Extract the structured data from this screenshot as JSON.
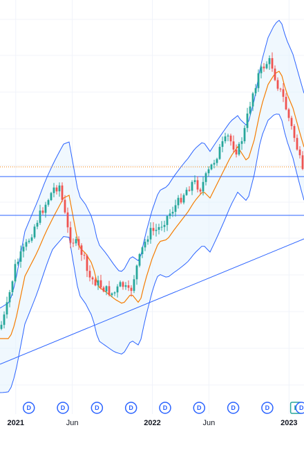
{
  "chart_data": {
    "type": "candlestick",
    "title": "",
    "xlabel": "",
    "ylabel": "",
    "x_tick_labels": [
      "2021",
      "Jun",
      "2022",
      "Jun",
      "2023"
    ],
    "x_tick_dates": [
      "2021-01-01",
      "2021-06-01",
      "2022-01-01",
      "2022-06-01",
      "2023-01-01"
    ],
    "x_range": [
      "2020-11-20",
      "2023-02-10"
    ],
    "y_axis_shown": false,
    "grid": true,
    "legend": "none",
    "series": [
      {
        "kind": "candles",
        "interval": "weekly"
      },
      {
        "kind": "bollinger-bands"
      },
      {
        "kind": "moving-average"
      }
    ],
    "horizontal_levels": [
      {
        "style": "solid",
        "level": "upper"
      },
      {
        "style": "dotted",
        "level": "last-price"
      },
      {
        "style": "solid",
        "level": "lower"
      }
    ],
    "trendline": {
      "style": "solid"
    },
    "event_markers": [
      {
        "date": "2021-02-05",
        "label": "D"
      },
      {
        "date": "2021-05-07",
        "label": "D"
      },
      {
        "date": "2021-08-06",
        "label": "D"
      },
      {
        "date": "2021-11-05",
        "label": "D"
      },
      {
        "date": "2022-02-04",
        "label": "D"
      },
      {
        "date": "2022-05-06",
        "label": "D"
      },
      {
        "date": "2022-08-05",
        "label": "D"
      },
      {
        "date": "2022-11-04",
        "label": "D"
      },
      {
        "date": "2023-01-20",
        "label": "E"
      },
      {
        "date": "2023-02-03",
        "label": "D"
      }
    ]
  },
  "colors": {
    "up": "#26a69a",
    "down": "#ef5350",
    "band_line": "#2962ff",
    "band_fill": "#e3f2fd",
    "moving_average": "#f57c00",
    "level_line": "#2962ff",
    "last_price_line": "#f57c00",
    "trendline": "#2962ff",
    "dividend_marker": "#2962ff",
    "earnings_marker": "#26a69a",
    "grid": "#f0f3fa"
  }
}
